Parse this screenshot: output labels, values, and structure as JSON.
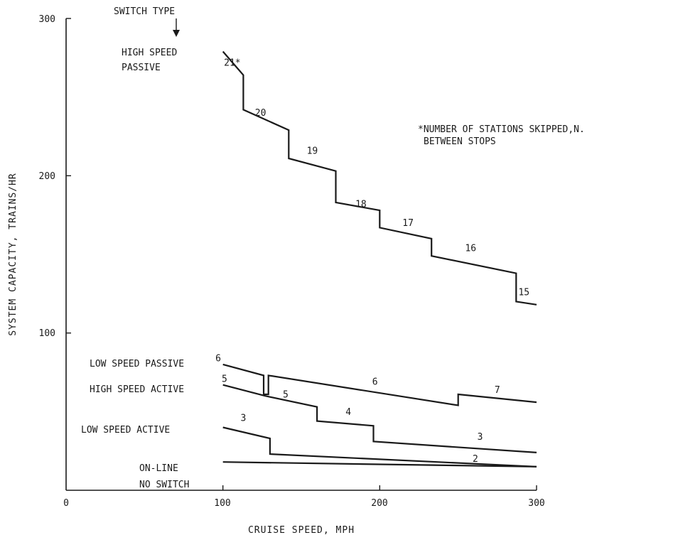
{
  "chart_data": {
    "type": "line",
    "xlabel": "CRUISE SPEED, MPH",
    "ylabel": "SYSTEM CAPACITY, TRAINS/HR",
    "xlim": [
      0,
      300
    ],
    "ylim": [
      0,
      300
    ],
    "xticks": [
      "0",
      "100",
      "200",
      "300"
    ],
    "yticks": [
      "100",
      "200",
      "300"
    ],
    "grid": false,
    "switch_type_header": "SWITCH TYPE",
    "footnote": [
      "*NUMBER OF STATIONS SKIPPED,N.",
      "BETWEEN STOPS"
    ],
    "series": [
      {
        "name": "HIGH SPEED PASSIVE",
        "label_lines": [
          "HIGH SPEED",
          "PASSIVE"
        ],
        "points": [
          [
            100,
            279
          ],
          [
            113,
            264
          ],
          [
            113,
            242
          ],
          [
            142,
            229
          ],
          [
            142,
            211
          ],
          [
            172,
            203
          ],
          [
            172,
            183
          ],
          [
            200,
            178
          ],
          [
            200,
            167
          ],
          [
            233,
            160
          ],
          [
            233,
            149
          ],
          [
            287,
            138
          ],
          [
            287,
            120
          ],
          [
            300,
            118
          ]
        ],
        "segment_labels": [
          {
            "text": "21*",
            "x": 106,
            "y": 270
          },
          {
            "text": "20",
            "x": 124,
            "y": 238
          },
          {
            "text": "19",
            "x": 157,
            "y": 214
          },
          {
            "text": "18",
            "x": 188,
            "y": 180
          },
          {
            "text": "17",
            "x": 218,
            "y": 168
          },
          {
            "text": "16",
            "x": 258,
            "y": 152
          },
          {
            "text": "15",
            "x": 292,
            "y": 124
          }
        ]
      },
      {
        "name": "LOW SPEED PASSIVE",
        "label_lines": [
          "LOW SPEED PASSIVE"
        ],
        "points": [
          [
            100,
            80
          ],
          [
            126,
            73
          ],
          [
            126,
            61
          ],
          [
            129,
            61
          ],
          [
            129,
            73
          ],
          [
            250,
            54
          ],
          [
            250,
            61
          ],
          [
            300,
            56
          ]
        ],
        "segment_labels": [
          {
            "text": "6",
            "x": 97,
            "y": 82
          },
          {
            "text": "6",
            "x": 197,
            "y": 67
          },
          {
            "text": "7",
            "x": 275,
            "y": 62
          }
        ]
      },
      {
        "name": "HIGH SPEED ACTIVE",
        "label_lines": [
          "HIGH SPEED ACTIVE"
        ],
        "points": [
          [
            100,
            67
          ],
          [
            127,
            60
          ],
          [
            160,
            53
          ],
          [
            160,
            44
          ],
          [
            196,
            41
          ],
          [
            196,
            31
          ],
          [
            300,
            24
          ]
        ],
        "segment_labels": [
          {
            "text": "5",
            "x": 101,
            "y": 69
          },
          {
            "text": "5",
            "x": 140,
            "y": 59
          },
          {
            "text": "4",
            "x": 180,
            "y": 48
          },
          {
            "text": "3",
            "x": 264,
            "y": 32
          }
        ]
      },
      {
        "name": "LOW SPEED ACTIVE",
        "label_lines": [
          "LOW SPEED ACTIVE"
        ],
        "points": [
          [
            100,
            40
          ],
          [
            130,
            33
          ],
          [
            130,
            23
          ],
          [
            300,
            15
          ]
        ],
        "segment_labels": [
          {
            "text": "3",
            "x": 113,
            "y": 44
          }
        ]
      },
      {
        "name": "ON-LINE NO SWITCH",
        "label_lines": [
          "ON-LINE",
          "NO SWITCH"
        ],
        "points": [
          [
            100,
            18
          ],
          [
            300,
            15
          ]
        ],
        "segment_labels": [
          {
            "text": "2",
            "x": 261,
            "y": 18
          }
        ]
      }
    ]
  }
}
